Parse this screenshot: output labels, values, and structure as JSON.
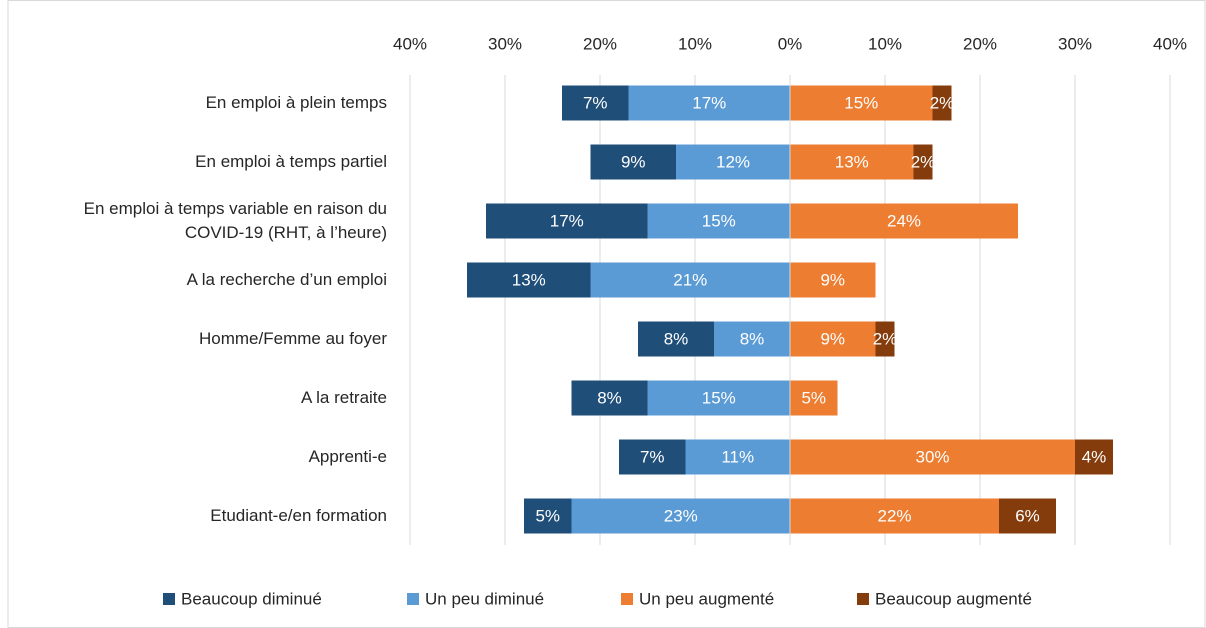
{
  "chart_data": {
    "type": "diverging_stacked_bar",
    "categories": [
      "En emploi à plein temps",
      "En emploi à temps partiel",
      "En emploi à temps variable en raison du COVID-19 (RHT, à l’heure)",
      "A la recherche d’un emploi",
      "Homme/Femme au foyer",
      "A la retraite",
      "Apprenti-e",
      "Etudiant-e/en formation"
    ],
    "series": [
      {
        "name": "Beaucoup diminué",
        "color": "#1f4e79",
        "values": [
          -7,
          -9,
          -17,
          -13,
          -8,
          -8,
          -7,
          -5
        ],
        "value_labels": [
          "7%",
          "9%",
          "17%",
          "13%",
          "8%",
          "8%",
          "7%",
          "5%"
        ]
      },
      {
        "name": "Un peu diminué",
        "color": "#5b9bd5",
        "values": [
          -17,
          -12,
          -15,
          -21,
          -8,
          -15,
          -11,
          -23
        ],
        "value_labels": [
          "17%",
          "12%",
          "15%",
          "21%",
          "8%",
          "15%",
          "11%",
          "23%"
        ]
      },
      {
        "name": "Un peu augmenté",
        "color": "#ed7d31",
        "values": [
          15,
          13,
          24,
          9,
          9,
          5,
          30,
          22
        ],
        "value_labels": [
          "15%",
          "13%",
          "24%",
          "9%",
          "9%",
          "5%",
          "30%",
          "22%"
        ]
      },
      {
        "name": "Beaucoup augmenté",
        "color": "#843c0c",
        "values": [
          2,
          2,
          null,
          null,
          2,
          null,
          4,
          6
        ],
        "value_labels": [
          "2%",
          "2%",
          null,
          null,
          "2%",
          null,
          "4%",
          "6%"
        ]
      }
    ],
    "xlim": [
      -40,
      40
    ],
    "xticks": [
      {
        "value": -40,
        "label": "40%"
      },
      {
        "value": -30,
        "label": "30%"
      },
      {
        "value": -20,
        "label": "20%"
      },
      {
        "value": -10,
        "label": "10%"
      },
      {
        "value": 0,
        "label": "0%"
      },
      {
        "value": 10,
        "label": "10%"
      },
      {
        "value": 20,
        "label": "20%"
      },
      {
        "value": 30,
        "label": "30%"
      },
      {
        "value": 40,
        "label": "40%"
      }
    ],
    "grid": true,
    "legend": "bottom"
  }
}
